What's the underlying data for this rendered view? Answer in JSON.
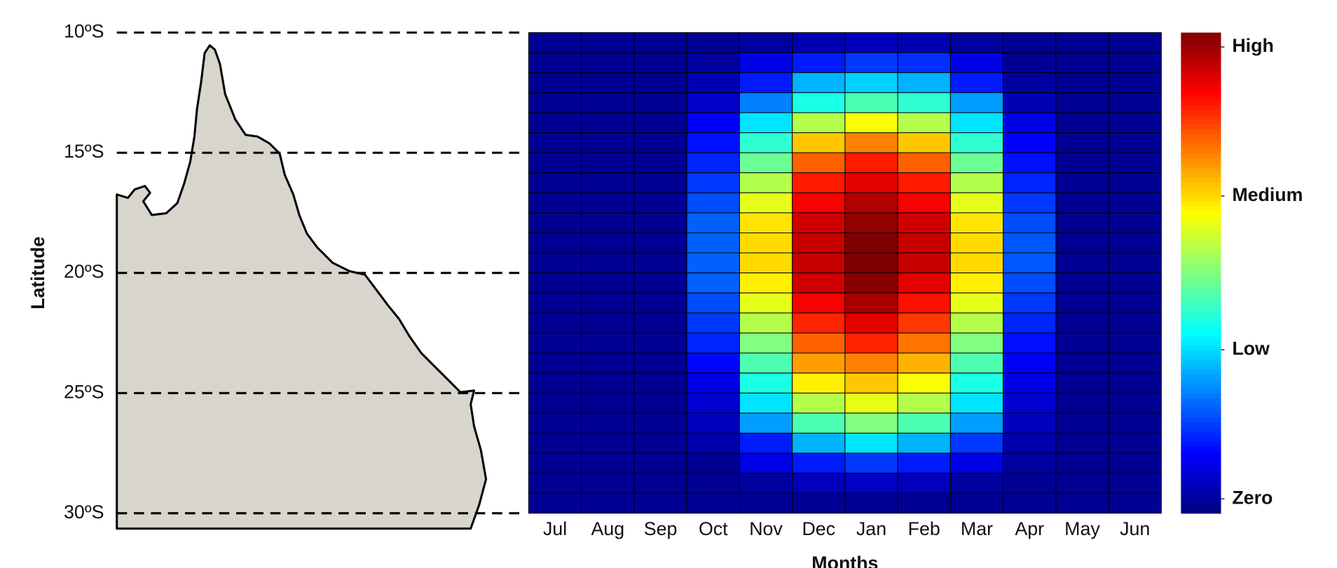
{
  "chart_data": {
    "type": "heatmap",
    "xlabel": "Months",
    "ylabel": "Latitude",
    "categories": [
      "Jul",
      "Aug",
      "Sep",
      "Oct",
      "Nov",
      "Dec",
      "Jan",
      "Feb",
      "Mar",
      "Apr",
      "May",
      "Jun"
    ],
    "ylim": [
      10,
      30
    ],
    "yticks": [
      {
        "value": 10,
        "label": "10ºS"
      },
      {
        "value": 15,
        "label": "15ºS"
      },
      {
        "value": 20,
        "label": "20ºS"
      },
      {
        "value": 25,
        "label": "25ºS"
      },
      {
        "value": 30,
        "label": "30ºS"
      }
    ],
    "colormap": "jet",
    "clim": [
      0,
      1
    ],
    "cticks": [
      {
        "value": 0.97,
        "label": "High"
      },
      {
        "value": 0.66,
        "label": "Medium"
      },
      {
        "value": 0.34,
        "label": "Low"
      },
      {
        "value": 0.03,
        "label": "Zero"
      }
    ],
    "values": [
      [
        0.02,
        0.02,
        0.02,
        0.02,
        0.03,
        0.05,
        0.06,
        0.05,
        0.03,
        0.02,
        0.02,
        0.02
      ],
      [
        0.02,
        0.02,
        0.02,
        0.03,
        0.1,
        0.15,
        0.18,
        0.17,
        0.1,
        0.02,
        0.02,
        0.02
      ],
      [
        0.02,
        0.02,
        0.02,
        0.05,
        0.15,
        0.3,
        0.33,
        0.3,
        0.15,
        0.03,
        0.02,
        0.02
      ],
      [
        0.02,
        0.02,
        0.02,
        0.07,
        0.25,
        0.4,
        0.45,
        0.42,
        0.28,
        0.05,
        0.02,
        0.02
      ],
      [
        0.02,
        0.02,
        0.02,
        0.12,
        0.35,
        0.55,
        0.62,
        0.55,
        0.35,
        0.1,
        0.02,
        0.02
      ],
      [
        0.02,
        0.02,
        0.02,
        0.14,
        0.42,
        0.68,
        0.75,
        0.68,
        0.42,
        0.12,
        0.02,
        0.02
      ],
      [
        0.02,
        0.02,
        0.02,
        0.16,
        0.48,
        0.78,
        0.85,
        0.78,
        0.48,
        0.14,
        0.02,
        0.02
      ],
      [
        0.02,
        0.02,
        0.02,
        0.18,
        0.55,
        0.85,
        0.9,
        0.85,
        0.55,
        0.16,
        0.02,
        0.02
      ],
      [
        0.02,
        0.02,
        0.02,
        0.2,
        0.6,
        0.88,
        0.95,
        0.88,
        0.6,
        0.18,
        0.02,
        0.02
      ],
      [
        0.02,
        0.02,
        0.02,
        0.22,
        0.65,
        0.92,
        0.98,
        0.92,
        0.65,
        0.2,
        0.02,
        0.02
      ],
      [
        0.02,
        0.02,
        0.02,
        0.22,
        0.66,
        0.93,
        1.0,
        0.93,
        0.66,
        0.21,
        0.02,
        0.02
      ],
      [
        0.02,
        0.02,
        0.02,
        0.22,
        0.66,
        0.93,
        1.0,
        0.93,
        0.66,
        0.21,
        0.02,
        0.02
      ],
      [
        0.02,
        0.02,
        0.02,
        0.22,
        0.64,
        0.92,
        0.99,
        0.9,
        0.64,
        0.2,
        0.02,
        0.02
      ],
      [
        0.02,
        0.02,
        0.02,
        0.2,
        0.6,
        0.88,
        0.96,
        0.86,
        0.6,
        0.18,
        0.02,
        0.02
      ],
      [
        0.02,
        0.02,
        0.02,
        0.18,
        0.55,
        0.84,
        0.9,
        0.82,
        0.55,
        0.16,
        0.02,
        0.02
      ],
      [
        0.02,
        0.02,
        0.02,
        0.16,
        0.5,
        0.78,
        0.84,
        0.76,
        0.5,
        0.14,
        0.02,
        0.02
      ],
      [
        0.02,
        0.02,
        0.02,
        0.13,
        0.45,
        0.72,
        0.75,
        0.7,
        0.45,
        0.12,
        0.02,
        0.02
      ],
      [
        0.02,
        0.02,
        0.02,
        0.1,
        0.4,
        0.64,
        0.68,
        0.62,
        0.4,
        0.1,
        0.02,
        0.02
      ],
      [
        0.02,
        0.02,
        0.02,
        0.08,
        0.35,
        0.55,
        0.6,
        0.55,
        0.35,
        0.08,
        0.02,
        0.02
      ],
      [
        0.02,
        0.02,
        0.02,
        0.06,
        0.28,
        0.45,
        0.5,
        0.45,
        0.28,
        0.06,
        0.02,
        0.02
      ],
      [
        0.02,
        0.02,
        0.02,
        0.04,
        0.15,
        0.3,
        0.35,
        0.3,
        0.18,
        0.04,
        0.02,
        0.02
      ],
      [
        0.02,
        0.02,
        0.02,
        0.02,
        0.1,
        0.15,
        0.18,
        0.15,
        0.1,
        0.03,
        0.02,
        0.02
      ],
      [
        0.02,
        0.02,
        0.02,
        0.02,
        0.03,
        0.06,
        0.07,
        0.06,
        0.03,
        0.02,
        0.02,
        0.02
      ],
      [
        0.02,
        0.02,
        0.02,
        0.02,
        0.02,
        0.02,
        0.02,
        0.02,
        0.02,
        0.02,
        0.02,
        0.02
      ]
    ]
  }
}
